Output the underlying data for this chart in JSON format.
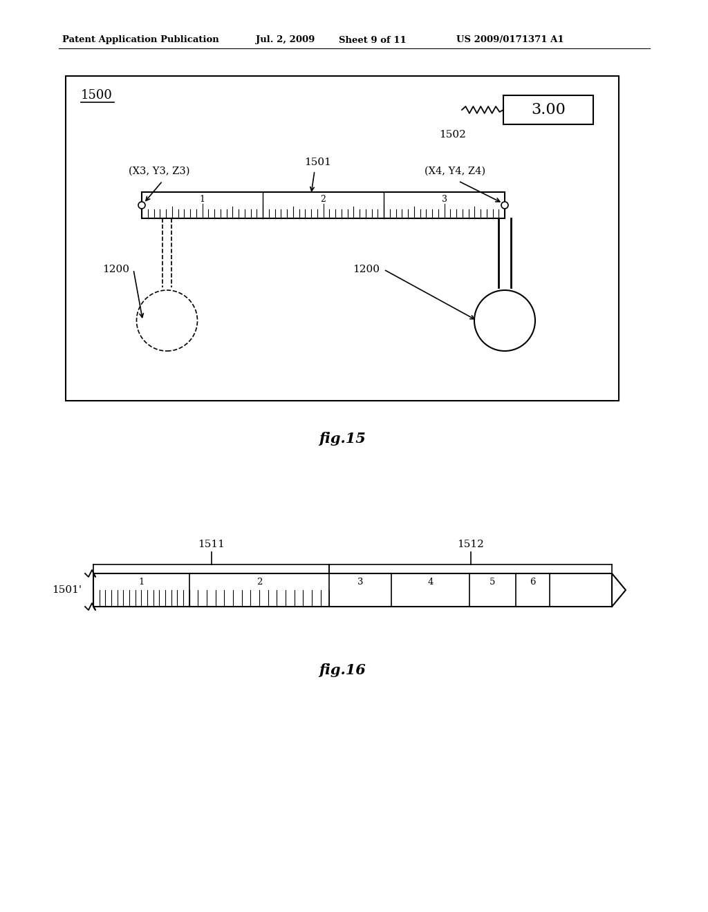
{
  "bg_color": "#ffffff",
  "header_text": "Patent Application Publication",
  "header_date": "Jul. 2, 2009",
  "header_sheet": "Sheet 9 of 11",
  "header_patent": "US 2009/0171371 A1",
  "fig15_label": "fig.15",
  "fig16_label": "fig.16",
  "fig15_box_label": "1500",
  "fig15_display_value": "3.00",
  "fig15_display_label": "1502",
  "fig15_ruler_label": "1501",
  "fig15_coord_left": "(X3, Y3, Z3)",
  "fig15_coord_right": "(X4, Y4, Z4)",
  "fig15_tool_label": "1200",
  "fig16_ruler_label": "1501'",
  "fig16_brace1_label": "1511",
  "fig16_brace2_label": "1512"
}
